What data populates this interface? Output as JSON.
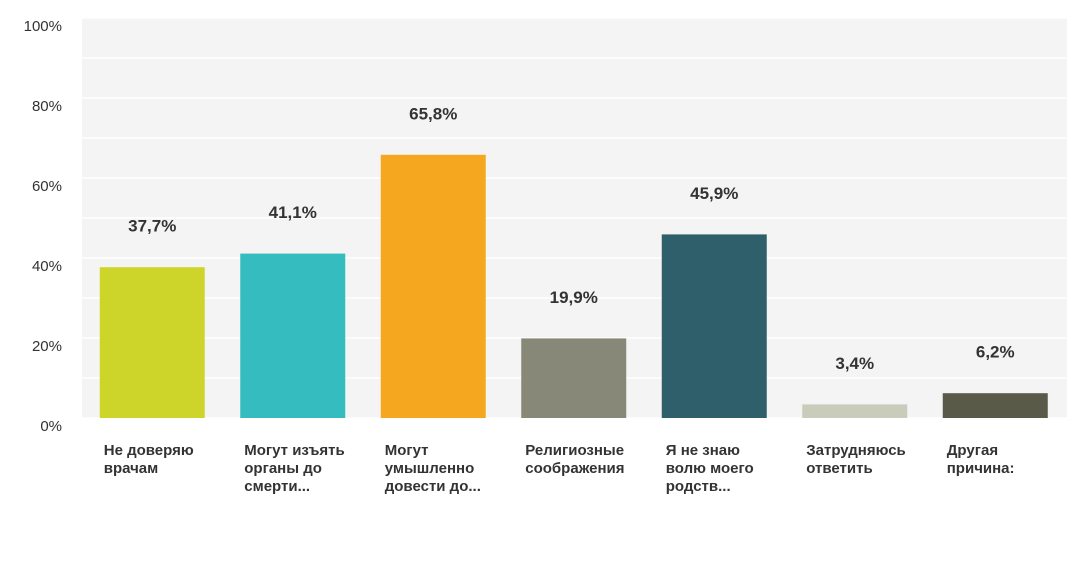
{
  "chart_data": {
    "type": "bar",
    "categories": [
      "Не доверяю врачам",
      "Могут изъять органы до смерти...",
      "Могут умышленно довести до...",
      "Религиозные соображения",
      "Я не знаю волю моего родств...",
      "Затрудняюсь ответить",
      "Другая причина:"
    ],
    "values": [
      37.7,
      41.1,
      65.8,
      19.9,
      45.9,
      3.4,
      6.2
    ],
    "value_labels": [
      "37,7%",
      "41,1%",
      "65,8%",
      "19,9%",
      "45,9%",
      "3,4%",
      "6,2%"
    ],
    "colors": [
      "#cdd52a",
      "#34bcbf",
      "#f5a81f",
      "#878878",
      "#2e5f6a",
      "#c9cbbb",
      "#5a5a48"
    ],
    "ylim": [
      0,
      100
    ],
    "yticks": [
      {
        "value": 0,
        "label": "0%"
      },
      {
        "value": 20,
        "label": "20%"
      },
      {
        "value": 40,
        "label": "40%"
      },
      {
        "value": 60,
        "label": "60%"
      },
      {
        "value": 80,
        "label": "80%"
      },
      {
        "value": 100,
        "label": "100%"
      }
    ],
    "minor_yticks": [
      10,
      30,
      50,
      70,
      90
    ],
    "grid": true
  }
}
